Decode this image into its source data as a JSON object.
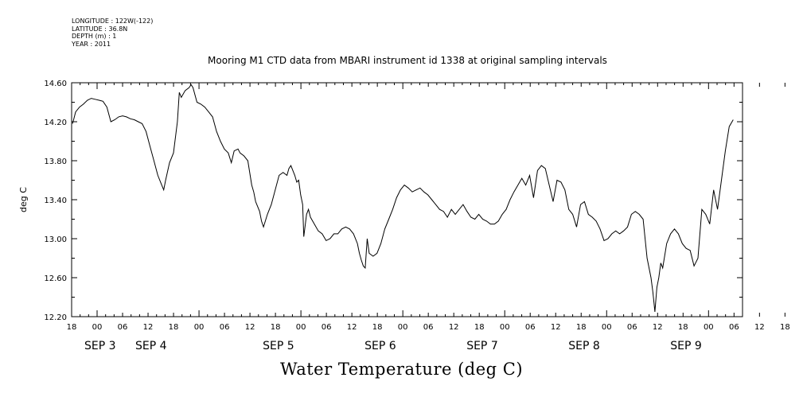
{
  "header": {
    "lines": [
      "LONGITUDE : 122W(-122)",
      "LATITUDE : 36.8N",
      "DEPTH (m) : 1",
      "YEAR : 2011"
    ]
  },
  "chart_data": {
    "type": "line",
    "title": "Mooring M1 CTD data from MBARI instrument id 1338 at original sampling intervals",
    "xlabel": "Water Temperature (deg C)",
    "ylabel": "deg C",
    "ylim": [
      12.2,
      14.6
    ],
    "yticks": [
      "14.60",
      "14.20",
      "13.80",
      "13.40",
      "13.00",
      "12.60",
      "12.20"
    ],
    "xlim_hours": [
      -6,
      152
    ],
    "x_hour_ticks": [
      "18",
      "00",
      "06",
      "12",
      "18",
      "00",
      "06",
      "12",
      "18",
      "00",
      "06",
      "12",
      "18",
      "00",
      "06",
      "12",
      "18",
      "00",
      "06",
      "12",
      "18",
      "00",
      "06",
      "12",
      "18",
      "00",
      "06",
      "12",
      "18"
    ],
    "date_labels": [
      {
        "text": "SEP  3",
        "hour": 0
      },
      {
        "text": "SEP  4",
        "hour": 12
      },
      {
        "text": "SEP  5",
        "hour": 42
      },
      {
        "text": "SEP  6",
        "hour": 66
      },
      {
        "text": "SEP  7",
        "hour": 90
      },
      {
        "text": "SEP  8",
        "hour": 114
      },
      {
        "text": "SEP  9",
        "hour": 138
      }
    ],
    "series": [
      {
        "points": [
          [
            -5.8,
            14.18
          ],
          [
            -5.5,
            14.22
          ],
          [
            -5,
            14.3
          ],
          [
            -4,
            14.35
          ],
          [
            -3,
            14.38
          ],
          [
            -2,
            14.42
          ],
          [
            -1,
            14.44
          ],
          [
            0,
            14.43
          ],
          [
            1,
            14.42
          ],
          [
            2,
            14.41
          ],
          [
            3,
            14.35
          ],
          [
            4,
            14.2
          ],
          [
            5,
            14.22
          ],
          [
            6,
            14.25
          ],
          [
            7,
            14.26
          ],
          [
            8,
            14.25
          ],
          [
            9,
            14.23
          ],
          [
            10,
            14.22
          ],
          [
            11,
            14.2
          ],
          [
            12,
            14.18
          ],
          [
            13,
            14.1
          ],
          [
            14,
            13.95
          ],
          [
            15,
            13.8
          ],
          [
            16,
            13.65
          ],
          [
            17,
            13.55
          ],
          [
            17.5,
            13.5
          ],
          [
            18,
            13.6
          ],
          [
            19,
            13.78
          ],
          [
            20,
            13.88
          ],
          [
            21,
            14.2
          ],
          [
            21.5,
            14.5
          ],
          [
            22,
            14.45
          ],
          [
            23,
            14.52
          ],
          [
            24,
            14.55
          ],
          [
            24.5,
            14.58
          ],
          [
            25,
            14.55
          ],
          [
            26,
            14.4
          ],
          [
            27,
            14.38
          ],
          [
            28,
            14.35
          ],
          [
            29,
            14.3
          ],
          [
            30,
            14.25
          ],
          [
            31,
            14.1
          ],
          [
            32,
            14.0
          ],
          [
            33,
            13.92
          ],
          [
            34,
            13.88
          ],
          [
            34.8,
            13.78
          ],
          [
            35.5,
            13.9
          ],
          [
            36.5,
            13.92
          ],
          [
            37,
            13.88
          ],
          [
            38,
            13.85
          ],
          [
            39,
            13.8
          ],
          [
            40,
            13.55
          ],
          [
            40.5,
            13.48
          ],
          [
            41,
            13.38
          ],
          [
            42,
            13.28
          ],
          [
            42.5,
            13.18
          ],
          [
            43,
            13.12
          ],
          [
            44,
            13.25
          ],
          [
            45,
            13.35
          ],
          [
            46,
            13.5
          ],
          [
            47,
            13.65
          ],
          [
            48,
            13.68
          ],
          [
            49,
            13.65
          ],
          [
            49.5,
            13.72
          ],
          [
            50,
            13.75
          ],
          [
            51,
            13.65
          ],
          [
            51.5,
            13.58
          ],
          [
            52,
            13.6
          ],
          [
            52.5,
            13.45
          ],
          [
            53,
            13.35
          ],
          [
            53.3,
            13.02
          ],
          [
            54,
            13.25
          ],
          [
            54.5,
            13.3
          ],
          [
            55,
            13.22
          ],
          [
            56,
            13.15
          ],
          [
            57,
            13.08
          ],
          [
            58,
            13.05
          ],
          [
            59,
            12.98
          ],
          [
            60,
            13.0
          ],
          [
            61,
            13.05
          ],
          [
            62,
            13.05
          ],
          [
            63,
            13.1
          ],
          [
            64,
            13.12
          ],
          [
            65,
            13.1
          ],
          [
            66,
            13.05
          ],
          [
            67,
            12.95
          ],
          [
            67.5,
            12.85
          ],
          [
            68,
            12.78
          ],
          [
            68.5,
            12.72
          ],
          [
            69,
            12.7
          ],
          [
            69.5,
            13.0
          ],
          [
            70,
            12.85
          ],
          [
            71,
            12.82
          ],
          [
            72,
            12.85
          ],
          [
            73,
            12.95
          ],
          [
            74,
            13.1
          ],
          [
            75,
            13.2
          ],
          [
            76,
            13.3
          ],
          [
            77,
            13.42
          ],
          [
            78,
            13.5
          ],
          [
            79,
            13.55
          ],
          [
            80,
            13.52
          ],
          [
            81,
            13.48
          ],
          [
            82,
            13.5
          ],
          [
            83,
            13.52
          ],
          [
            84,
            13.48
          ],
          [
            85,
            13.45
          ],
          [
            86,
            13.4
          ],
          [
            87,
            13.35
          ],
          [
            88,
            13.3
          ],
          [
            89,
            13.28
          ],
          [
            90,
            13.22
          ],
          [
            91,
            13.3
          ],
          [
            92,
            13.25
          ],
          [
            93,
            13.3
          ],
          [
            94,
            13.35
          ],
          [
            95,
            13.28
          ],
          [
            96,
            13.22
          ],
          [
            97,
            13.2
          ],
          [
            98,
            13.25
          ],
          [
            99,
            13.2
          ],
          [
            100,
            13.18
          ],
          [
            101,
            13.15
          ],
          [
            102,
            13.15
          ],
          [
            103,
            13.18
          ],
          [
            104,
            13.25
          ],
          [
            105,
            13.3
          ],
          [
            106,
            13.4
          ],
          [
            107,
            13.48
          ],
          [
            108,
            13.55
          ],
          [
            109,
            13.62
          ],
          [
            110,
            13.55
          ],
          [
            111,
            13.65
          ],
          [
            112,
            13.42
          ],
          [
            113,
            13.7
          ],
          [
            114,
            13.75
          ],
          [
            115,
            13.72
          ],
          [
            116,
            13.55
          ],
          [
            117,
            13.38
          ],
          [
            118,
            13.6
          ],
          [
            119,
            13.58
          ],
          [
            120,
            13.5
          ],
          [
            121,
            13.3
          ],
          [
            122,
            13.25
          ],
          [
            123,
            13.12
          ],
          [
            124,
            13.35
          ],
          [
            125,
            13.38
          ],
          [
            126,
            13.25
          ],
          [
            127,
            13.22
          ],
          [
            128,
            13.18
          ],
          [
            129,
            13.1
          ],
          [
            130,
            12.98
          ],
          [
            131,
            13.0
          ],
          [
            132,
            13.05
          ],
          [
            133,
            13.08
          ],
          [
            134,
            13.05
          ],
          [
            135,
            13.08
          ],
          [
            136,
            13.12
          ],
          [
            137,
            13.25
          ],
          [
            138,
            13.28
          ],
          [
            139,
            13.25
          ],
          [
            140,
            13.2
          ],
          [
            141,
            12.8
          ],
          [
            142,
            12.6
          ],
          [
            142.5,
            12.45
          ],
          [
            143,
            12.25
          ],
          [
            143.5,
            12.5
          ],
          [
            144,
            12.6
          ],
          [
            144.5,
            12.75
          ],
          [
            145,
            12.7
          ],
          [
            146,
            12.95
          ],
          [
            147,
            13.05
          ],
          [
            148,
            13.1
          ],
          [
            149,
            13.05
          ],
          [
            150,
            12.95
          ],
          [
            151,
            12.9
          ],
          [
            152,
            12.88
          ],
          [
            153,
            12.72
          ],
          [
            154,
            12.8
          ],
          [
            155,
            13.3
          ],
          [
            156,
            13.25
          ],
          [
            157,
            13.15
          ],
          [
            158,
            13.5
          ],
          [
            159,
            13.3
          ],
          [
            160,
            13.6
          ],
          [
            161,
            13.9
          ],
          [
            162,
            14.15
          ],
          [
            163,
            14.22
          ]
        ]
      }
    ]
  }
}
